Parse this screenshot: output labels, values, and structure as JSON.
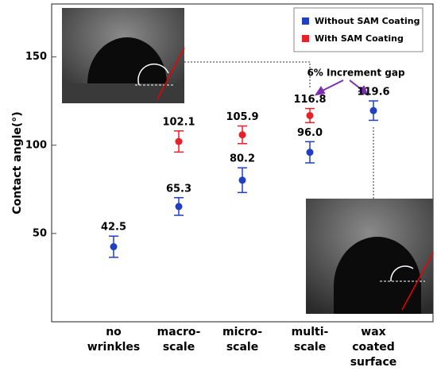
{
  "chart_data": {
    "type": "scatter",
    "y_label": "Contact angle(°)",
    "categories": [
      "no\nwrinkles",
      "macro-\nscale",
      "micro-\nscale",
      "multi-\nscale",
      "wax\ncoated\nsurface"
    ],
    "ylim": [
      0,
      180
    ],
    "yticks": [
      50,
      100,
      150
    ],
    "annotation": "6% Increment gap",
    "series": [
      {
        "name": "Without SAM Coating",
        "color": "#1f3fc4",
        "values": [
          42.5,
          65.3,
          80.2,
          96.0,
          119.6
        ],
        "value_labels": [
          "42.5",
          "65.3",
          "80.2",
          "96.0",
          "119.6"
        ],
        "errors": [
          6,
          5,
          7,
          6,
          5.5
        ]
      },
      {
        "name": "With SAM Coating",
        "color": "#e8202a",
        "values": [
          null,
          102.1,
          105.9,
          116.8,
          null
        ],
        "value_labels": [
          null,
          "102.1",
          "105.9",
          "116.8",
          null
        ],
        "errors": [
          null,
          6,
          5,
          4,
          null
        ]
      }
    ]
  }
}
